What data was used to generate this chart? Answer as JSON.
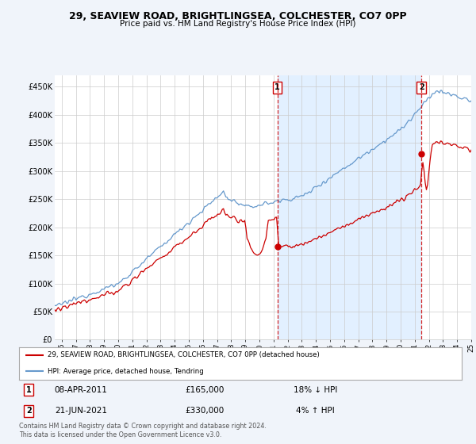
{
  "title": "29, SEAVIEW ROAD, BRIGHTLINGSEA, COLCHESTER, CO7 0PP",
  "subtitle": "Price paid vs. HM Land Registry's House Price Index (HPI)",
  "legend_line1": "29, SEAVIEW ROAD, BRIGHTLINGSEA, COLCHESTER, CO7 0PP (detached house)",
  "legend_line2": "HPI: Average price, detached house, Tendring",
  "annotation1_date": "08-APR-2011",
  "annotation1_price": "£165,000",
  "annotation1_hpi": "18% ↓ HPI",
  "annotation2_date": "21-JUN-2021",
  "annotation2_price": "£330,000",
  "annotation2_hpi": "4% ↑ HPI",
  "footnote": "Contains HM Land Registry data © Crown copyright and database right 2024.\nThis data is licensed under the Open Government Licence v3.0.",
  "red_color": "#cc0000",
  "blue_color": "#6699cc",
  "shade_color": "#ddeeff",
  "background_color": "#f0f4fa",
  "plot_bg": "#ffffff",
  "ylim": [
    0,
    470000
  ],
  "yticks": [
    0,
    50000,
    100000,
    150000,
    200000,
    250000,
    300000,
    350000,
    400000,
    450000
  ],
  "ytick_labels": [
    "£0",
    "£50K",
    "£100K",
    "£150K",
    "£200K",
    "£250K",
    "£300K",
    "£350K",
    "£400K",
    "£450K"
  ],
  "marker1_x": 2011.27,
  "marker1_y": 165000,
  "marker2_x": 2021.47,
  "marker2_y": 330000,
  "xlim_start": 1995.5,
  "xlim_end": 2025.0,
  "xtick_start": 1996,
  "xtick_end": 2025
}
